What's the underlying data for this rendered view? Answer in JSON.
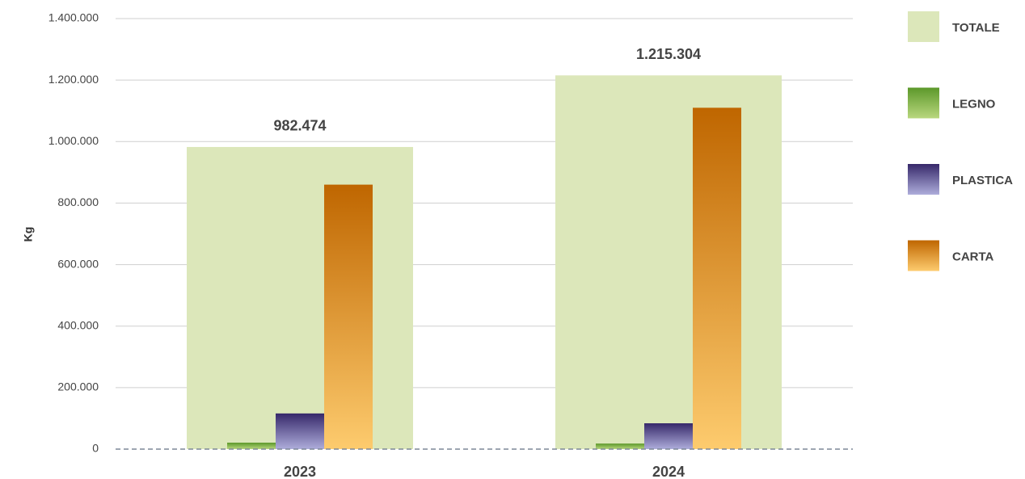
{
  "chart_data": {
    "type": "bar",
    "y_label": "Kg",
    "categories": [
      "2023",
      "2024"
    ],
    "series": [
      {
        "name": "TOTALE",
        "color": [
          "#dce7ba",
          "#dce7ba"
        ],
        "values": [
          982474,
          1215304
        ],
        "value_labels": [
          "982.474",
          "1.215.304"
        ]
      },
      {
        "name": "LEGNO",
        "color": [
          "#5c982a",
          "#b9d77e"
        ],
        "values": [
          21000,
          18000
        ]
      },
      {
        "name": "PLASTICA",
        "color": [
          "#36286a",
          "#aeaddb"
        ],
        "values": [
          116000,
          84000
        ]
      },
      {
        "name": "CARTA",
        "color": [
          "#bf6600",
          "#fdcb6e"
        ],
        "values": [
          860000,
          1110000
        ]
      }
    ],
    "ylim": [
      0,
      1400000
    ],
    "yticks": [
      0,
      {
        "value": 200000,
        "label": "200.000"
      },
      {
        "value": 400000,
        "label": "400.000"
      },
      {
        "value": 600000,
        "label": "600.000"
      },
      {
        "value": 800000,
        "label": "800.000"
      },
      {
        "value": 1000000,
        "label": "1.000.000"
      },
      {
        "value": 1200000,
        "label": "1.200.000"
      },
      {
        "value": 1400000,
        "label": "1.400.000"
      }
    ],
    "grid": true,
    "legend": "right"
  }
}
